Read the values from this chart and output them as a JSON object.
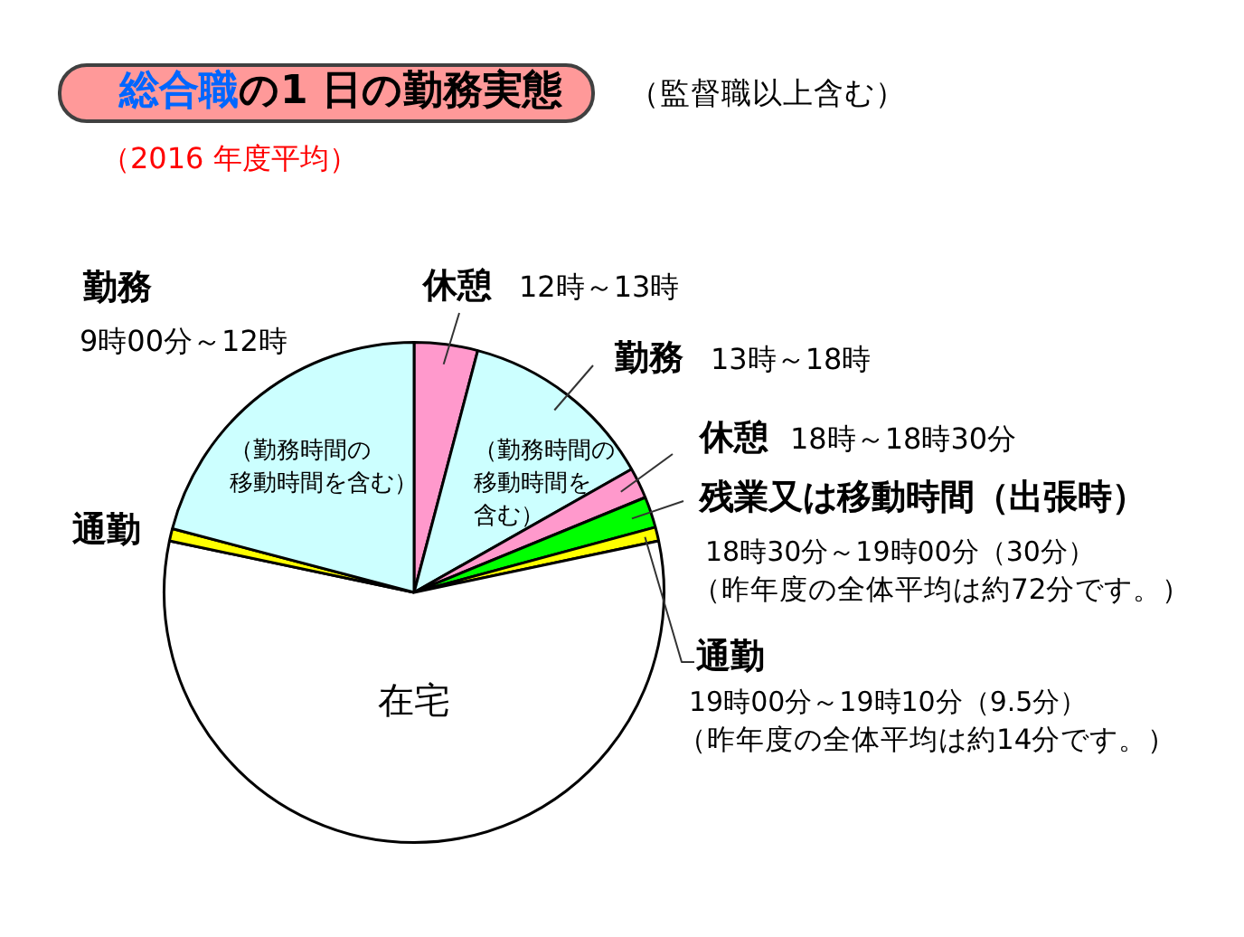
{
  "chart_data": {
    "type": "pie",
    "title": "総合職の1 日の勤務実態",
    "subtitle": "（2016 年度平均）",
    "categories": [
      "休憩",
      "勤務",
      "休憩",
      "残業又は移動時間（出張時）",
      "通勤",
      "在宅",
      "通勤",
      "勤務"
    ],
    "values": [
      4.1,
      12.7,
      2.0,
      2.0,
      0.9,
      56.6,
      0.8,
      20.9
    ],
    "colors": [
      "#ff99cc",
      "#ccffff",
      "#ff99cc",
      "#00ff00",
      "#ffff00",
      "#ffffff",
      "#ffff00",
      "#ccffff"
    ],
    "annotations": [
      "（監督職以上含む）",
      "9時00分～12時",
      "12時～13時",
      "13時～18時",
      "18時～18時30分",
      "18時30分～19時00分（30分）",
      "（昨年度の全体平均は約72分です。）",
      "19時00分～19時10分（9.5分）",
      "（昨年度の全体平均は約14分です。）",
      "（勤務時間の移動時間を含む）",
      "（勤務時間の移動時間を含む）"
    ]
  }
}
